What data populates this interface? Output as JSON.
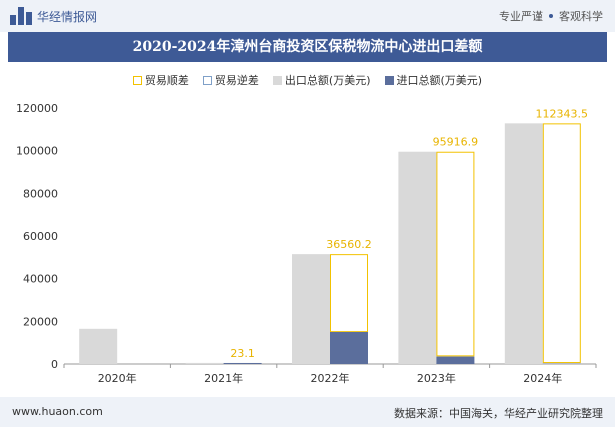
{
  "header": {
    "brand": "华经情报网",
    "tag1": "专业严谨",
    "tag2": "客观科学"
  },
  "title": "2020-2024年漳州台商投资区保税物流中心进出口差额",
  "footer": {
    "site": "www.huaon.com",
    "source": "数据来源：中国海关，华经产业研究院整理"
  },
  "colors": {
    "surplus": "#f2c200",
    "deficit": "#7fa0c8",
    "export": "#d9d9d9",
    "import": "#5b6e9c",
    "brand": "#3e5a96"
  },
  "chart_data": {
    "type": "bar",
    "categories": [
      "2020年",
      "2021年",
      "2022年",
      "2023年",
      "2024年"
    ],
    "series": [
      {
        "name": "贸易顺差",
        "values": [
          null,
          23.1,
          36560.2,
          95916.9,
          112343.5
        ]
      },
      {
        "name": "贸易逆差",
        "values": [
          null,
          null,
          null,
          null,
          null
        ]
      },
      {
        "name": "出口总额(万美元)",
        "values": [
          16500,
          500,
          51500,
          99500,
          112800
        ]
      },
      {
        "name": "进口总额(万美元)",
        "values": [
          0,
          480,
          15000,
          3500,
          200
        ]
      }
    ],
    "data_labels": [
      "",
      "23.1",
      "36560.2",
      "95916.9",
      "112343.5"
    ],
    "ylim": [
      0,
      120000
    ],
    "yticks": [
      0,
      20000,
      40000,
      60000,
      80000,
      100000,
      120000
    ],
    "legend_position": "top",
    "grid": false
  }
}
